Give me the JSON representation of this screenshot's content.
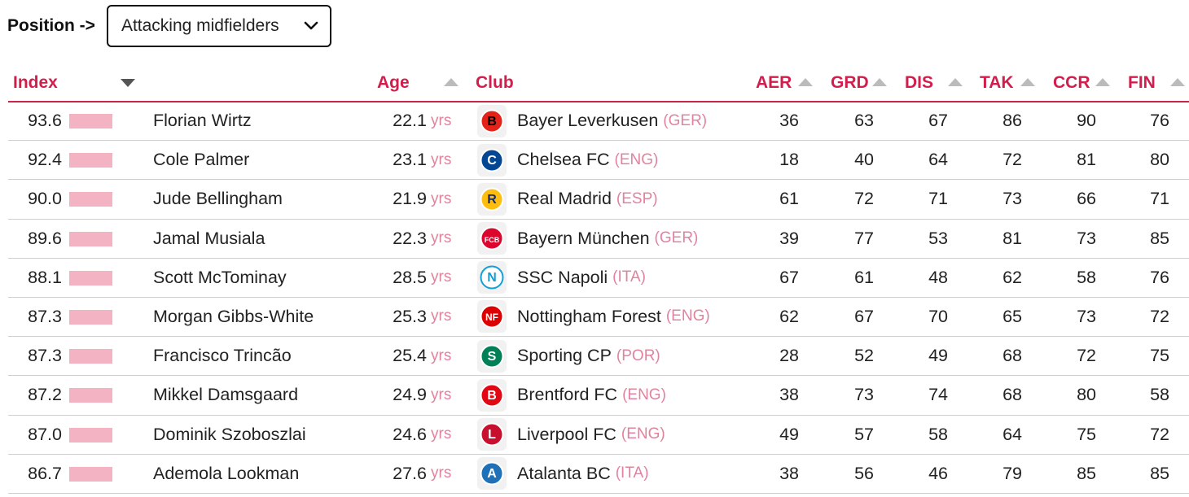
{
  "filter": {
    "label": "Position ->",
    "selected": "Attacking midfielders"
  },
  "columns": {
    "index": "Index",
    "age": "Age",
    "club": "Club",
    "aer": "AER",
    "grd": "GRD",
    "dis": "DIS",
    "tak": "TAK",
    "ccr": "CCR",
    "fin": "FIN"
  },
  "accent": "#d21e4c",
  "bar_color": "#f4b3c2",
  "players": [
    {
      "index": "93.6",
      "name": "Florian Wirtz",
      "age": "22.1",
      "age_unit": "yrs",
      "club": "Bayer Leverkusen",
      "country": "(GER)",
      "logo": "bayer-leverkusen-logo-icon",
      "aer": "36",
      "grd": "63",
      "dis": "67",
      "tak": "86",
      "ccr": "90",
      "fin": "76"
    },
    {
      "index": "92.4",
      "name": "Cole Palmer",
      "age": "23.1",
      "age_unit": "yrs",
      "club": "Chelsea FC",
      "country": "(ENG)",
      "logo": "chelsea-logo-icon",
      "aer": "18",
      "grd": "40",
      "dis": "64",
      "tak": "72",
      "ccr": "81",
      "fin": "80"
    },
    {
      "index": "90.0",
      "name": "Jude Bellingham",
      "age": "21.9",
      "age_unit": "yrs",
      "club": "Real Madrid",
      "country": "(ESP)",
      "logo": "real-madrid-logo-icon",
      "aer": "61",
      "grd": "72",
      "dis": "71",
      "tak": "73",
      "ccr": "66",
      "fin": "71"
    },
    {
      "index": "89.6",
      "name": "Jamal Musiala",
      "age": "22.3",
      "age_unit": "yrs",
      "club": "Bayern München",
      "country": "(GER)",
      "logo": "bayern-munchen-logo-icon",
      "aer": "39",
      "grd": "77",
      "dis": "53",
      "tak": "81",
      "ccr": "73",
      "fin": "85"
    },
    {
      "index": "88.1",
      "name": "Scott McTominay",
      "age": "28.5",
      "age_unit": "yrs",
      "club": "SSC Napoli",
      "country": "(ITA)",
      "logo": "napoli-logo-icon",
      "aer": "67",
      "grd": "61",
      "dis": "48",
      "tak": "62",
      "ccr": "58",
      "fin": "76"
    },
    {
      "index": "87.3",
      "name": "Morgan Gibbs-White",
      "age": "25.3",
      "age_unit": "yrs",
      "club": "Nottingham Forest",
      "country": "(ENG)",
      "logo": "nottingham-forest-logo-icon",
      "aer": "62",
      "grd": "67",
      "dis": "70",
      "tak": "65",
      "ccr": "73",
      "fin": "72"
    },
    {
      "index": "87.3",
      "name": "Francisco Trincão",
      "age": "25.4",
      "age_unit": "yrs",
      "club": "Sporting CP",
      "country": "(POR)",
      "logo": "sporting-cp-logo-icon",
      "aer": "28",
      "grd": "52",
      "dis": "49",
      "tak": "68",
      "ccr": "72",
      "fin": "75"
    },
    {
      "index": "87.2",
      "name": "Mikkel Damsgaard",
      "age": "24.9",
      "age_unit": "yrs",
      "club": "Brentford FC",
      "country": "(ENG)",
      "logo": "brentford-logo-icon",
      "aer": "38",
      "grd": "73",
      "dis": "74",
      "tak": "68",
      "ccr": "80",
      "fin": "58"
    },
    {
      "index": "87.0",
      "name": "Dominik Szoboszlai",
      "age": "24.6",
      "age_unit": "yrs",
      "club": "Liverpool FC",
      "country": "(ENG)",
      "logo": "liverpool-logo-icon",
      "aer": "49",
      "grd": "57",
      "dis": "58",
      "tak": "64",
      "ccr": "75",
      "fin": "72"
    },
    {
      "index": "86.7",
      "name": "Ademola Lookman",
      "age": "27.6",
      "age_unit": "yrs",
      "club": "Atalanta BC",
      "country": "(ITA)",
      "logo": "atalanta-logo-icon",
      "aer": "38",
      "grd": "56",
      "dis": "46",
      "tak": "79",
      "ccr": "85",
      "fin": "85"
    }
  ]
}
